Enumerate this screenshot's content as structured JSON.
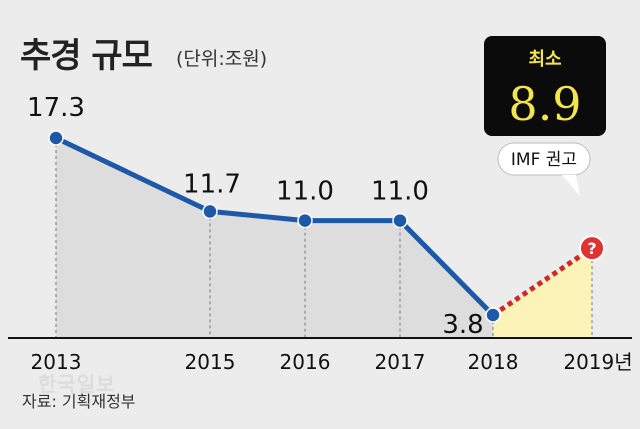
{
  "title": "추경 규모",
  "unit": "(단위:조원)",
  "source": "자료: 기획재정부",
  "watermark": "한국일보",
  "colors": {
    "line": "#1d59a8",
    "marker": "#1d59a8",
    "projection": "#d42727",
    "projection_fill": "#fbf3b8",
    "area_fill": "#dddddd",
    "callout_bg": "#0b0b0b",
    "callout_text": "#f6e54a",
    "question_bg": "#e03232"
  },
  "callout": {
    "title": "최소",
    "value": "8.9",
    "note": "IMF 권고"
  },
  "chart_data": {
    "type": "line",
    "title": "추경 규모",
    "ylabel": "(단위:조원)",
    "categories": [
      "2013",
      "2015",
      "2016",
      "2017",
      "2018",
      "2019년"
    ],
    "values": [
      17.3,
      11.7,
      11.0,
      11.0,
      3.8,
      8.9
    ],
    "labels": [
      "17.3",
      "11.7",
      "11.0",
      "11.0",
      "3.8",
      "?"
    ],
    "projected_index": 5,
    "projected_note": "IMF 권고 최소 8.9",
    "ylim": [
      0,
      20
    ],
    "grid": false
  }
}
